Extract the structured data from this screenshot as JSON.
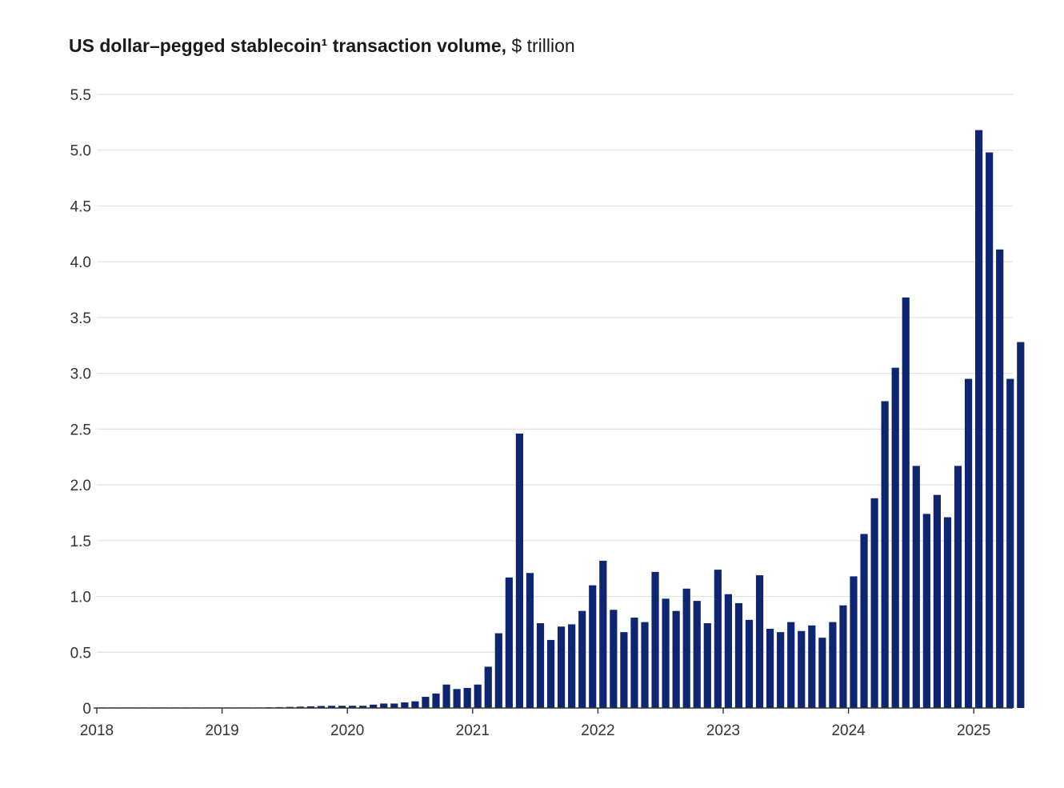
{
  "chart_data": {
    "type": "bar",
    "title_main": "US dollar–pegged stablecoin¹ transaction volume,",
    "title_unit": "$ trillion",
    "xlabel": "",
    "ylabel": "",
    "ylim": [
      0,
      5.5
    ],
    "y_ticks": [
      {
        "value": 0,
        "label": "0"
      },
      {
        "value": 0.5,
        "label": "0.5"
      },
      {
        "value": 1.0,
        "label": "1.0"
      },
      {
        "value": 1.5,
        "label": "1.5"
      },
      {
        "value": 2.0,
        "label": "2.0"
      },
      {
        "value": 2.5,
        "label": "2.5"
      },
      {
        "value": 3.0,
        "label": "3.0"
      },
      {
        "value": 3.5,
        "label": "3.5"
      },
      {
        "value": 4.0,
        "label": "4.0"
      },
      {
        "value": 4.5,
        "label": "4.5"
      },
      {
        "value": 5.0,
        "label": "5.0"
      },
      {
        "value": 5.5,
        "label": "5.5"
      }
    ],
    "x_ticks": [
      "2018",
      "2019",
      "2020",
      "2021",
      "2022",
      "2023",
      "2024",
      "2025"
    ],
    "start_month": "2018-01",
    "grid": true,
    "bar_color": "#0e2672",
    "values": [
      0.001,
      0.001,
      0.001,
      0.001,
      0.001,
      0.001,
      0.001,
      0.001,
      0.001,
      0.001,
      0.001,
      0.001,
      0.002,
      0.002,
      0.003,
      0.004,
      0.006,
      0.008,
      0.01,
      0.012,
      0.015,
      0.018,
      0.02,
      0.02,
      0.02,
      0.02,
      0.03,
      0.04,
      0.04,
      0.05,
      0.06,
      0.1,
      0.13,
      0.21,
      0.17,
      0.18,
      0.21,
      0.37,
      0.67,
      1.17,
      2.46,
      1.21,
      0.76,
      0.61,
      0.73,
      0.75,
      0.87,
      1.1,
      1.32,
      0.88,
      0.68,
      0.81,
      0.77,
      1.22,
      0.98,
      0.87,
      1.07,
      0.96,
      0.76,
      1.24,
      1.02,
      0.94,
      0.79,
      1.19,
      0.71,
      0.68,
      0.77,
      0.69,
      0.74,
      0.63,
      0.77,
      0.92,
      1.18,
      1.56,
      1.88,
      2.75,
      3.05,
      3.68,
      2.17,
      1.74,
      1.91,
      1.71,
      2.17,
      2.95,
      5.18,
      4.98,
      4.11,
      2.95,
      3.28
    ]
  }
}
